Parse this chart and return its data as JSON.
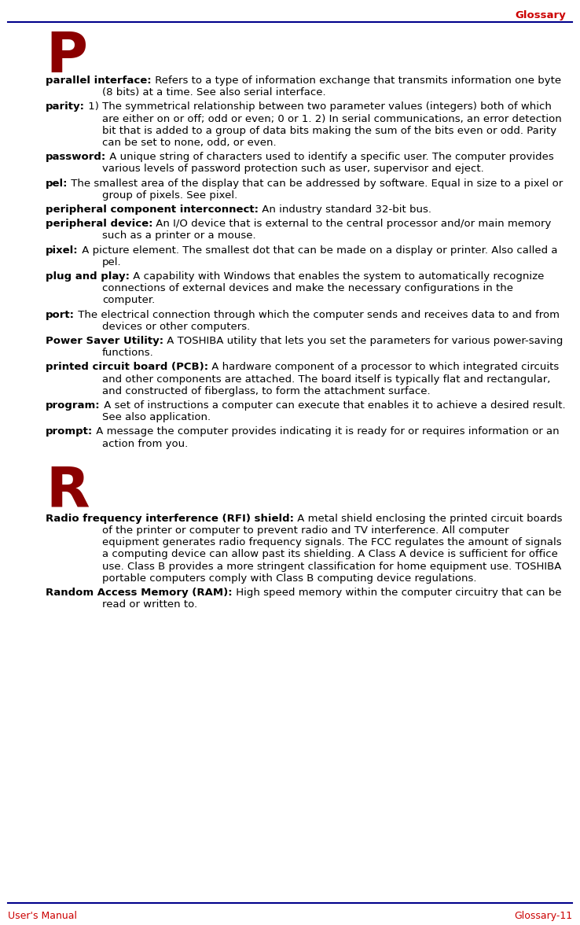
{
  "header_text": "Glossary",
  "header_color": "#CC0000",
  "header_line_color": "#00008B",
  "footer_left": "User's Manual",
  "footer_right": "Glossary-11",
  "footer_color": "#CC0000",
  "section_P": "P",
  "section_R": "R",
  "section_color": "#8B0000",
  "bg_color": "#FFFFFF",
  "text_color": "#000000",
  "entries": [
    {
      "term": "parallel interface:",
      "definition": "  Refers to a type of information exchange that transmits information one byte (8 bits) at a time. See also serial interface."
    },
    {
      "term": "parity:",
      "definition": "  1) The symmetrical relationship between two parameter values (integers) both of which are either on or off; odd or even; 0 or 1.  2) In serial communications, an error detection bit that is added to a group of data bits making the sum of the bits even or odd. Parity can be set to none, odd, or even."
    },
    {
      "term": "password:",
      "definition": "  A unique string of characters used to identify a specific user. The computer provides various levels of password protection such as user, supervisor and eject."
    },
    {
      "term": "pel:",
      "definition": "  The smallest area of the display that can be addressed by software. Equal in size to a pixel or group of pixels. See pixel."
    },
    {
      "term": "peripheral component interconnect:",
      "definition": "  An industry standard 32-bit bus."
    },
    {
      "term": "peripheral device:",
      "definition": "  An I/O device that is external to the central processor and/or main memory such as a printer or a mouse."
    },
    {
      "term": "pixel:",
      "definition": "  A picture element. The smallest dot that can be made on a display or printer. Also called a pel."
    },
    {
      "term": "plug and play:",
      "definition": "  A capability with Windows that enables the system to automatically recognize connections of external devices and make the necessary configurations in the computer."
    },
    {
      "term": "port:",
      "definition": "  The electrical connection through which the computer sends and receives data to and from devices or other computers."
    },
    {
      "term": "Power Saver Utility:",
      "definition": "  A TOSHIBA utility that lets you set the parameters for various power-saving functions."
    },
    {
      "term": "printed circuit board (PCB):",
      "definition": "  A hardware component of a processor to which integrated circuits and other components are attached. The board itself is typically flat and rectangular, and constructed of fiberglass, to form the attachment surface."
    },
    {
      "term": "program:",
      "definition": "  A set of instructions a computer can execute that enables it to achieve a desired result. See also application."
    },
    {
      "term": "prompt:",
      "definition": "  A message the computer provides indicating it is ready for or requires information or an action from you."
    }
  ],
  "entries_R": [
    {
      "term": "Radio frequency interference (RFI) shield:",
      "definition": "  A metal shield enclosing the printed circuit boards of the printer or computer to prevent radio and TV interference. All computer equipment generates radio frequency signals. The FCC regulates the amount of signals a computing device can allow past its shielding. A Class A device is sufficient for office use. Class B provides a more stringent classification for home equipment use. TOSHIBA portable computers comply with Class B computing device regulations."
    },
    {
      "term": "Random Access Memory (RAM):",
      "definition": "  High speed memory within the computer circuitry that can be read or written to."
    }
  ]
}
